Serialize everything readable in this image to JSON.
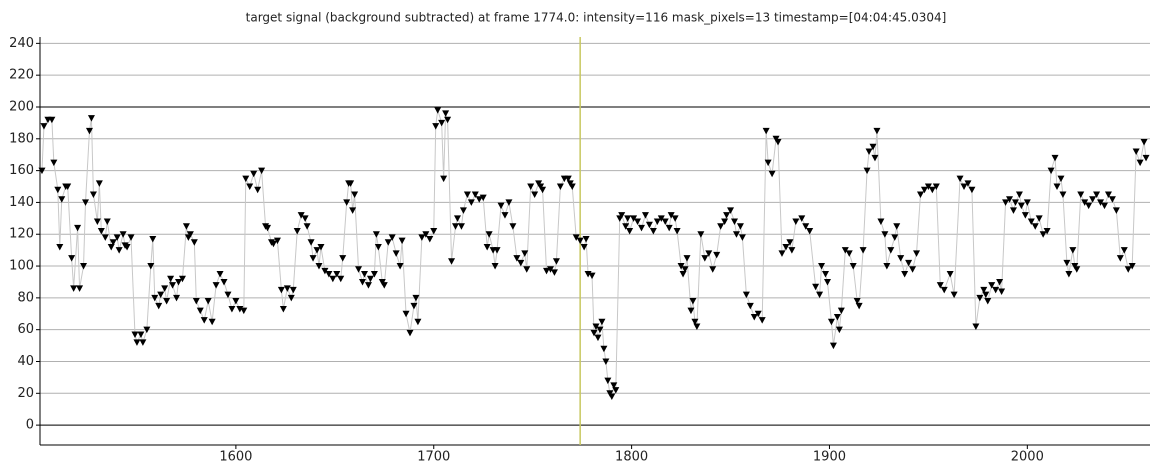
{
  "chart_data": {
    "type": "line",
    "title": "target signal (background subtracted) at frame 1774.0: intensity=116 mask_pixels=13 timestamp=[04:04:45.0304]",
    "x": [
      1502,
      1503,
      1505,
      1507,
      1508,
      1510,
      1511,
      1512,
      1514,
      1515,
      1517,
      1518,
      1520,
      1521,
      1523,
      1524,
      1526,
      1527,
      1528,
      1530,
      1531,
      1532,
      1534,
      1535,
      1537,
      1538,
      1540,
      1541,
      1543,
      1544,
      1545,
      1547,
      1549,
      1550,
      1552,
      1553,
      1555,
      1557,
      1558,
      1559,
      1561,
      1562,
      1564,
      1565,
      1567,
      1568,
      1570,
      1571,
      1573,
      1575,
      1576,
      1577,
      1579,
      1580,
      1582,
      1584,
      1586,
      1588,
      1590,
      1592,
      1594,
      1596,
      1598,
      1600,
      1602,
      1604,
      1605,
      1607,
      1609,
      1611,
      1613,
      1615,
      1616,
      1618,
      1619,
      1621,
      1623,
      1624,
      1626,
      1628,
      1629,
      1631,
      1633,
      1635,
      1636,
      1638,
      1639,
      1641,
      1642,
      1643,
      1645,
      1647,
      1649,
      1651,
      1653,
      1654,
      1656,
      1657,
      1658,
      1659,
      1660,
      1662,
      1664,
      1665,
      1667,
      1668,
      1670,
      1671,
      1672,
      1674,
      1675,
      1677,
      1679,
      1681,
      1683,
      1684,
      1686,
      1688,
      1690,
      1691,
      1692,
      1694,
      1696,
      1698,
      1700,
      1701,
      1702,
      1704,
      1705,
      1706,
      1707,
      1709,
      1711,
      1712,
      1714,
      1715,
      1717,
      1719,
      1721,
      1723,
      1725,
      1727,
      1728,
      1730,
      1731,
      1732,
      1734,
      1736,
      1738,
      1740,
      1742,
      1744,
      1746,
      1747,
      1749,
      1751,
      1753,
      1754,
      1755,
      1757,
      1759,
      1761,
      1762,
      1764,
      1766,
      1768,
      1769,
      1770,
      1772,
      1774,
      1776,
      1777,
      1778,
      1780,
      1781,
      1782,
      1783,
      1784,
      1785,
      1786,
      1787,
      1788,
      1789,
      1790,
      1791,
      1792,
      1794,
      1795,
      1797,
      1798,
      1799,
      1801,
      1803,
      1805,
      1807,
      1809,
      1811,
      1813,
      1815,
      1817,
      1819,
      1820,
      1822,
      1823,
      1825,
      1826,
      1827,
      1828,
      1830,
      1831,
      1832,
      1833,
      1835,
      1837,
      1839,
      1841,
      1843,
      1845,
      1847,
      1848,
      1850,
      1852,
      1853,
      1855,
      1856,
      1858,
      1860,
      1862,
      1864,
      1866,
      1868,
      1869,
      1871,
      1873,
      1874,
      1876,
      1878,
      1880,
      1881,
      1883,
      1886,
      1888,
      1890,
      1893,
      1895,
      1896,
      1898,
      1899,
      1901,
      1902,
      1904,
      1905,
      1906,
      1908,
      1910,
      1912,
      1914,
      1915,
      1917,
      1919,
      1920,
      1922,
      1923,
      1924,
      1926,
      1928,
      1929,
      1931,
      1933,
      1934,
      1936,
      1938,
      1940,
      1942,
      1944,
      1946,
      1948,
      1950,
      1952,
      1954,
      1956,
      1958,
      1961,
      1963,
      1966,
      1968,
      1970,
      1972,
      1974,
      1976,
      1978,
      1979,
      1980,
      1982,
      1984,
      1986,
      1987,
      1989,
      1991,
      1993,
      1994,
      1996,
      1997,
      1999,
      2000,
      2002,
      2004,
      2006,
      2008,
      2010,
      2012,
      2014,
      2015,
      2017,
      2018,
      2020,
      2021,
      2023,
      2024,
      2025,
      2027,
      2029,
      2031,
      2033,
      2035,
      2037,
      2039,
      2041,
      2043,
      2045,
      2047,
      2049,
      2051,
      2053,
      2055,
      2057,
      2059,
      2060
    ],
    "values": [
      160,
      188,
      192,
      192,
      165,
      148,
      112,
      142,
      150,
      150,
      105,
      86,
      124,
      86,
      100,
      140,
      185,
      193,
      145,
      128,
      152,
      122,
      118,
      128,
      112,
      115,
      118,
      110,
      120,
      113,
      112,
      118,
      57,
      52,
      57,
      52,
      60,
      100,
      117,
      80,
      75,
      82,
      86,
      78,
      92,
      88,
      80,
      90,
      92,
      125,
      118,
      120,
      115,
      78,
      72,
      66,
      78,
      65,
      88,
      95,
      90,
      82,
      73,
      78,
      73,
      72,
      155,
      150,
      158,
      148,
      160,
      125,
      124,
      115,
      114,
      116,
      85,
      73,
      86,
      80,
      85,
      122,
      132,
      130,
      125,
      115,
      105,
      110,
      100,
      112,
      97,
      95,
      92,
      95,
      92,
      105,
      140,
      152,
      152,
      135,
      145,
      98,
      90,
      95,
      88,
      92,
      95,
      120,
      112,
      90,
      88,
      115,
      118,
      108,
      100,
      116,
      70,
      58,
      75,
      80,
      65,
      118,
      120,
      117,
      122,
      188,
      198,
      190,
      155,
      196,
      192,
      103,
      125,
      130,
      125,
      135,
      145,
      140,
      145,
      142,
      143,
      112,
      120,
      110,
      100,
      110,
      138,
      132,
      140,
      125,
      105,
      102,
      108,
      98,
      150,
      145,
      152,
      150,
      148,
      97,
      98,
      96,
      103,
      150,
      155,
      155,
      152,
      150,
      118,
      116,
      112,
      117,
      95,
      94,
      58,
      62,
      55,
      60,
      65,
      48,
      40,
      28,
      20,
      18,
      25,
      22,
      130,
      132,
      125,
      130,
      122,
      130,
      128,
      124,
      132,
      126,
      122,
      128,
      130,
      128,
      124,
      132,
      130,
      122,
      100,
      95,
      98,
      105,
      72,
      78,
      65,
      62,
      120,
      105,
      108,
      98,
      107,
      125,
      128,
      132,
      135,
      128,
      120,
      125,
      118,
      82,
      75,
      68,
      70,
      66,
      185,
      165,
      158,
      180,
      178,
      108,
      112,
      115,
      110,
      128,
      130,
      125,
      122,
      87,
      82,
      100,
      95,
      90,
      65,
      50,
      68,
      60,
      72,
      110,
      108,
      100,
      78,
      75,
      110,
      160,
      172,
      175,
      168,
      185,
      128,
      120,
      100,
      110,
      118,
      125,
      105,
      95,
      102,
      98,
      108,
      145,
      148,
      150,
      148,
      150,
      88,
      85,
      95,
      82,
      155,
      150,
      152,
      148,
      62,
      80,
      85,
      82,
      78,
      88,
      85,
      90,
      84,
      140,
      142,
      135,
      140,
      145,
      138,
      132,
      140,
      128,
      125,
      130,
      120,
      122,
      160,
      168,
      150,
      155,
      145,
      102,
      95,
      110,
      100,
      98,
      145,
      140,
      138,
      142,
      145,
      140,
      138,
      145,
      142,
      135,
      105,
      110,
      98,
      100,
      172,
      165,
      178,
      168
    ],
    "line_color": "#c8c8c8",
    "marker_color": "#000000",
    "xlim": [
      1501,
      2062
    ],
    "ylim": [
      -12.5,
      244
    ],
    "xticks": [
      1600,
      1700,
      1800,
      1900,
      2000
    ],
    "yticks": [
      0,
      20,
      40,
      60,
      80,
      100,
      120,
      140,
      160,
      180,
      200,
      220,
      240
    ],
    "grid": true,
    "hlines": [
      0,
      200
    ],
    "vline": 1774,
    "vline_color": "#c8c860"
  }
}
